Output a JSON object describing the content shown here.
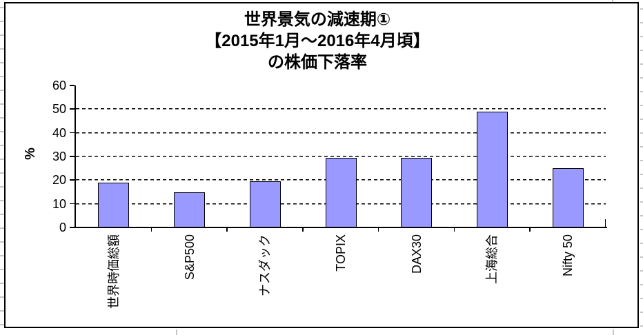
{
  "chart_data": {
    "type": "bar",
    "title": "世界景気の減速期①【2015年1月～2016年4月頃】の株価下落率",
    "title_lines": [
      "世界景気の減速期①",
      "【2015年1月～2016年4月頃】",
      "の株価下落率"
    ],
    "ylabel": "%",
    "categories": [
      "世界時価総額",
      "S&P500",
      "ナスダック",
      "TOPIX",
      "DAX30",
      "上海総合",
      "Nifty 50"
    ],
    "values": [
      19,
      15,
      19.5,
      29.5,
      29.5,
      49,
      25
    ],
    "ylim": [
      0,
      60
    ],
    "yticks": [
      0,
      10,
      20,
      30,
      40,
      50,
      60
    ],
    "gridlines_at": [
      10,
      20,
      30,
      40,
      50
    ],
    "grid_style": "dashed",
    "legend": "none",
    "bar_color": "#9999FF",
    "bar_border_color": "#000000",
    "x_label_rotation_deg": 90
  }
}
